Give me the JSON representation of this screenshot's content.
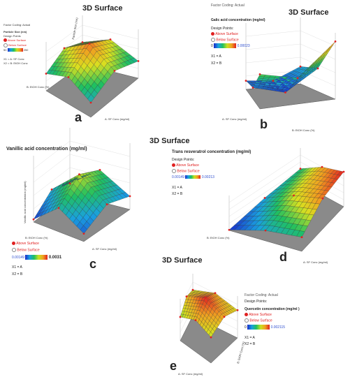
{
  "figure": {
    "panels": [
      {
        "id": "a",
        "header": "3D Surface",
        "factor_coding": "Factor Coding: Actual",
        "response": "Particle Size (nm)",
        "design_points": "Design Points",
        "above": "Above Surface",
        "below": "Below Surface",
        "scale_min": "50",
        "scale_max": "250",
        "x1": "X1 = A: SF Conc",
        "x2": "X2 = B: EtOH Conc",
        "axis_z": "Particle Size (nm)",
        "axis_a": "A: SF Conc (mg/ml)",
        "axis_b": "B: EtOH Conc (%)",
        "z_ticks": [
          "50",
          "100",
          "150",
          "200",
          "250"
        ],
        "a_ticks": [
          "2",
          "1.8",
          "1.6",
          "1.4",
          "1.2",
          "1"
        ],
        "b_ticks": [
          "60",
          "65",
          "70",
          "75",
          "80"
        ],
        "letter": "a"
      },
      {
        "id": "b",
        "header": "3D Surface",
        "factor_coding": "Factor Coding: Actual",
        "response": "Galic acid concentration  (mg/ml)",
        "design_points": "Design Points:",
        "above": "Above Surface",
        "below": "Below Surface",
        "scale_min": "0",
        "scale_max": "0.00023",
        "x1": "X1 = A",
        "x2": "X2 = B",
        "axis_a": "A: SF Conc (mg/ml)",
        "axis_b": "B: EtOH Conc (%)",
        "a_ticks": [
          "2",
          "1.8",
          "1.6",
          "1.4",
          "1.2",
          "1"
        ],
        "b_ticks": [
          "80",
          "75",
          "70",
          "65",
          "60"
        ],
        "letter": "b"
      },
      {
        "id": "c",
        "header": "3D Surface",
        "response": "Vanillic acid concentration (mg/ml)",
        "axis_z": "Vanillic acid concentration (mg/ml)",
        "axis_a": "A: SF Conc (mg/ml)",
        "axis_b": "B: EtOH Conc (%)",
        "z_ticks": [
          "0.0015",
          "0.002",
          "0.0025",
          "0.003",
          "0.0035",
          "0.004"
        ],
        "a_ticks": [
          "1",
          "1.2",
          "1.4",
          "1.6",
          "1.8",
          "2"
        ],
        "b_ticks": [
          "60",
          "65",
          "70",
          "75",
          "80"
        ],
        "above": "Above Surface",
        "below": "Below Surface",
        "scale_min": "0.00149",
        "scale_max": "0.0031",
        "x1": "X1 = A",
        "x2": "X2 = B",
        "letter": "c"
      },
      {
        "id": "d",
        "response": "Trans resveratrol concentration (mg/ml)",
        "design_points": "Design Points:",
        "above": "Above Surface",
        "below": "Below Surface",
        "scale_min": "0.00149",
        "scale_max": "0.00213",
        "x1": "X1 = A",
        "x2": "X2 = B",
        "axis_a": "A: SF Conc (mg/ml)",
        "axis_b": "B: EtOH Conc (%)",
        "a_ticks": [
          "1",
          "1.2",
          "1.4",
          "1.6",
          "1.8",
          "2"
        ],
        "b_ticks": [
          "60",
          "65",
          "70",
          "75",
          "80"
        ],
        "letter": "d"
      },
      {
        "id": "e",
        "header": "3D Surface",
        "factor_coding": "Factor Coding: Actual",
        "response": "Quercetin concentration (mg/ml )",
        "design_points": "Design Points:",
        "above": "Above Surface",
        "below": "Below Surface",
        "scale_min": "0",
        "scale_max": "0.002115",
        "x1": "X1 = A",
        "x2": "X2 = B",
        "axis_a": "A: SF Conc (mg/ml)",
        "axis_b": "B: EtOH Conc (%)",
        "a_ticks": [
          "2",
          "1.8",
          "1.6",
          "1.4",
          "1.2",
          "1"
        ],
        "b_ticks": [
          "60",
          "65",
          "70",
          "75",
          "80"
        ],
        "letter": "e"
      }
    ],
    "colors": {
      "low": "#1a28c8",
      "mid_low": "#20c060",
      "mid": "#d8e020",
      "mid_high": "#f0a020",
      "high": "#e02020",
      "floor": "#8a8a8a",
      "design_point": "#e02020"
    }
  },
  "chart_data": [
    {
      "type": "heatmap",
      "panel": "a",
      "title": "3D Surface",
      "zlabel": "Particle Size (nm)",
      "xlabel": "A: SF Conc (mg/ml)",
      "ylabel": "B: EtOH Conc (%)",
      "xlim": [
        1,
        2
      ],
      "ylim": [
        60,
        80
      ],
      "zlim": [
        50,
        250
      ],
      "x": [
        1,
        1.5,
        2
      ],
      "y": [
        60,
        70,
        80
      ],
      "z": [
        [
          120,
          170,
          140
        ],
        [
          160,
          230,
          180
        ],
        [
          110,
          160,
          120
        ]
      ]
    },
    {
      "type": "heatmap",
      "panel": "b",
      "title": "3D Surface",
      "zlabel": "Galic acid concentration (mg/ml)",
      "xlabel": "A: SF Conc (mg/ml)",
      "ylabel": "B: EtOH Conc (%)",
      "xlim": [
        1,
        2
      ],
      "ylim": [
        60,
        80
      ],
      "zlim": [
        0,
        0.00023
      ],
      "x": [
        1,
        1.5,
        2
      ],
      "y": [
        60,
        70,
        80
      ],
      "z": [
        [
          3e-05,
          2e-05,
          6e-05
        ],
        [
          4e-05,
          1e-05,
          8e-05
        ],
        [
          0.00012,
          9e-05,
          0.0002
        ]
      ]
    },
    {
      "type": "heatmap",
      "panel": "c",
      "title": "3D Surface",
      "zlabel": "Vanillic acid concentration (mg/ml)",
      "xlabel": "A: SF Conc (mg/ml)",
      "ylabel": "B: EtOH Conc (%)",
      "xlim": [
        1,
        2
      ],
      "ylim": [
        60,
        80
      ],
      "zlim": [
        0.0015,
        0.004
      ],
      "x": [
        1,
        1.5,
        2
      ],
      "y": [
        60,
        70,
        80
      ],
      "z": [
        [
          0.0016,
          0.0022,
          0.0019
        ],
        [
          0.0024,
          0.0031,
          0.0027
        ],
        [
          0.0018,
          0.0023,
          0.002
        ]
      ]
    },
    {
      "type": "heatmap",
      "panel": "d",
      "zlabel": "Trans resveratrol concentration (mg/ml)",
      "xlabel": "A: SF Conc (mg/ml)",
      "ylabel": "B: EtOH Conc (%)",
      "xlim": [
        1,
        2
      ],
      "ylim": [
        60,
        80
      ],
      "zlim": [
        0.00149,
        0.00213
      ],
      "x": [
        1,
        1.5,
        2
      ],
      "y": [
        60,
        70,
        80
      ],
      "z": [
        [
          0.0015,
          0.00165,
          0.00175
        ],
        [
          0.00168,
          0.0019,
          0.002
        ],
        [
          0.00175,
          0.00205,
          0.00213
        ]
      ]
    },
    {
      "type": "heatmap",
      "panel": "e",
      "title": "3D Surface",
      "zlabel": "Quercetin concentration (mg/ml )",
      "xlabel": "A: SF Conc (mg/ml)",
      "ylabel": "B: EtOH Conc (%)",
      "xlim": [
        1,
        2
      ],
      "ylim": [
        60,
        80
      ],
      "zlim": [
        0,
        0.002115
      ],
      "x": [
        1,
        1.5,
        2
      ],
      "y": [
        60,
        70,
        80
      ],
      "z": [
        [
          0.0012,
          0.0016,
          0.0013
        ],
        [
          0.0016,
          0.0021,
          0.0017
        ],
        [
          0.0013,
          0.0017,
          0.0014
        ]
      ]
    }
  ]
}
